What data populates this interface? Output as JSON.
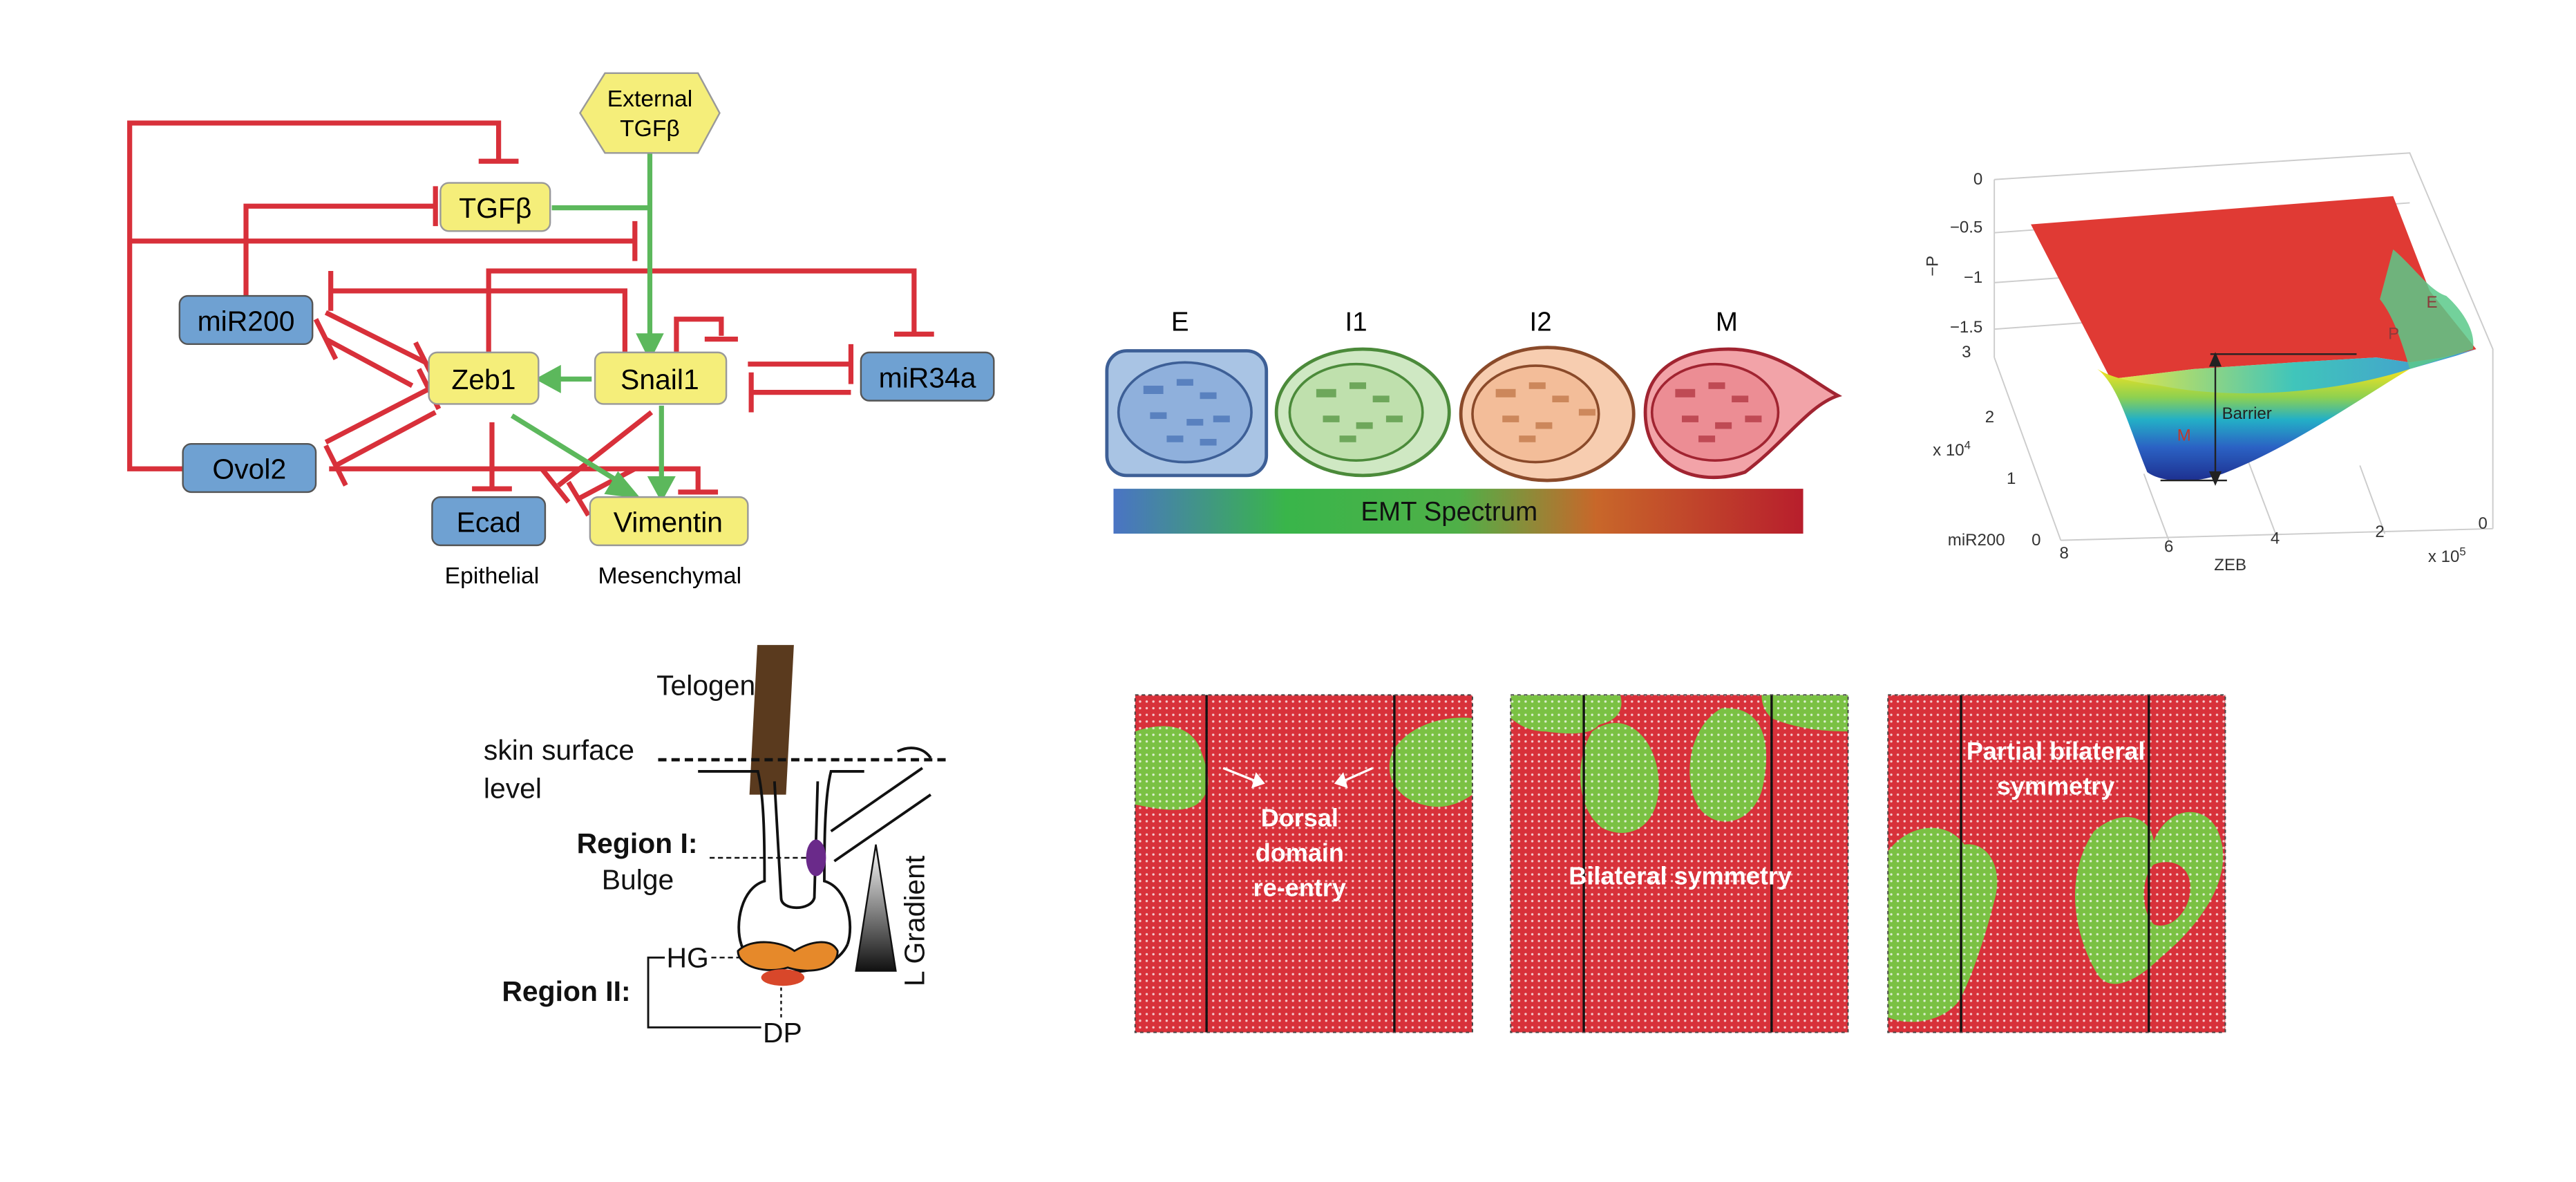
{
  "colors": {
    "inhibit_red": "#d8303a",
    "activate_green": "#5cb85c",
    "yellow_node": "#f5ee7a",
    "blue_node": "#6fa1d2",
    "lattice_red": "#d8313a",
    "lattice_green": "#7ac143"
  },
  "network": {
    "nodes": {
      "external": [
        "External",
        "TGFβ"
      ],
      "tgfb": "TGFβ",
      "mir200": "miR200",
      "zeb1": "Zeb1",
      "snail1": "Snail1",
      "mir34a": "miR34a",
      "ovol2": "Ovol2",
      "ecad": "Ecad",
      "vimentin": "Vimentin"
    },
    "labels": {
      "epithelial": "Epithelial",
      "mesenchymal": "Mesenchymal"
    }
  },
  "emt": {
    "states": [
      "E",
      "I1",
      "I2",
      "M"
    ],
    "state_colors": [
      "#a9c4e4",
      "#cfe8c3",
      "#f7cdb0",
      "#f2a3a8"
    ],
    "spectrum_label": "EMT Spectrum"
  },
  "landscape": {
    "ylabel": "−P",
    "zticks": [
      "0",
      "−0.5",
      "−1",
      "−1.5"
    ],
    "yticks": [
      "3",
      "2",
      "1",
      "0"
    ],
    "y_exp": "x 10",
    "y_exp_pow": "4",
    "y_label": "miR200",
    "xticks": [
      "8",
      "6",
      "4",
      "2",
      "0"
    ],
    "x_label": "ZEB",
    "x_exp": "x 10",
    "x_exp_pow": "5",
    "barrier": "Barrier",
    "state_m": "M",
    "state_p": "P",
    "state_e": "E"
  },
  "follicle": {
    "telogen": "Telogen",
    "skin_line1": "skin surface",
    "skin_line2": "level",
    "region1": "Region I:",
    "bulge": "Bulge",
    "region2": "Region II:",
    "hg": "HG",
    "dp": "DP",
    "gradient": "L Gradient"
  },
  "lattices": {
    "panel1": [
      "Dorsal",
      "domain",
      "re-entry"
    ],
    "panel2": "Bilateral symmetry",
    "panel3": [
      "Partial bilateral",
      "symmetry"
    ]
  }
}
